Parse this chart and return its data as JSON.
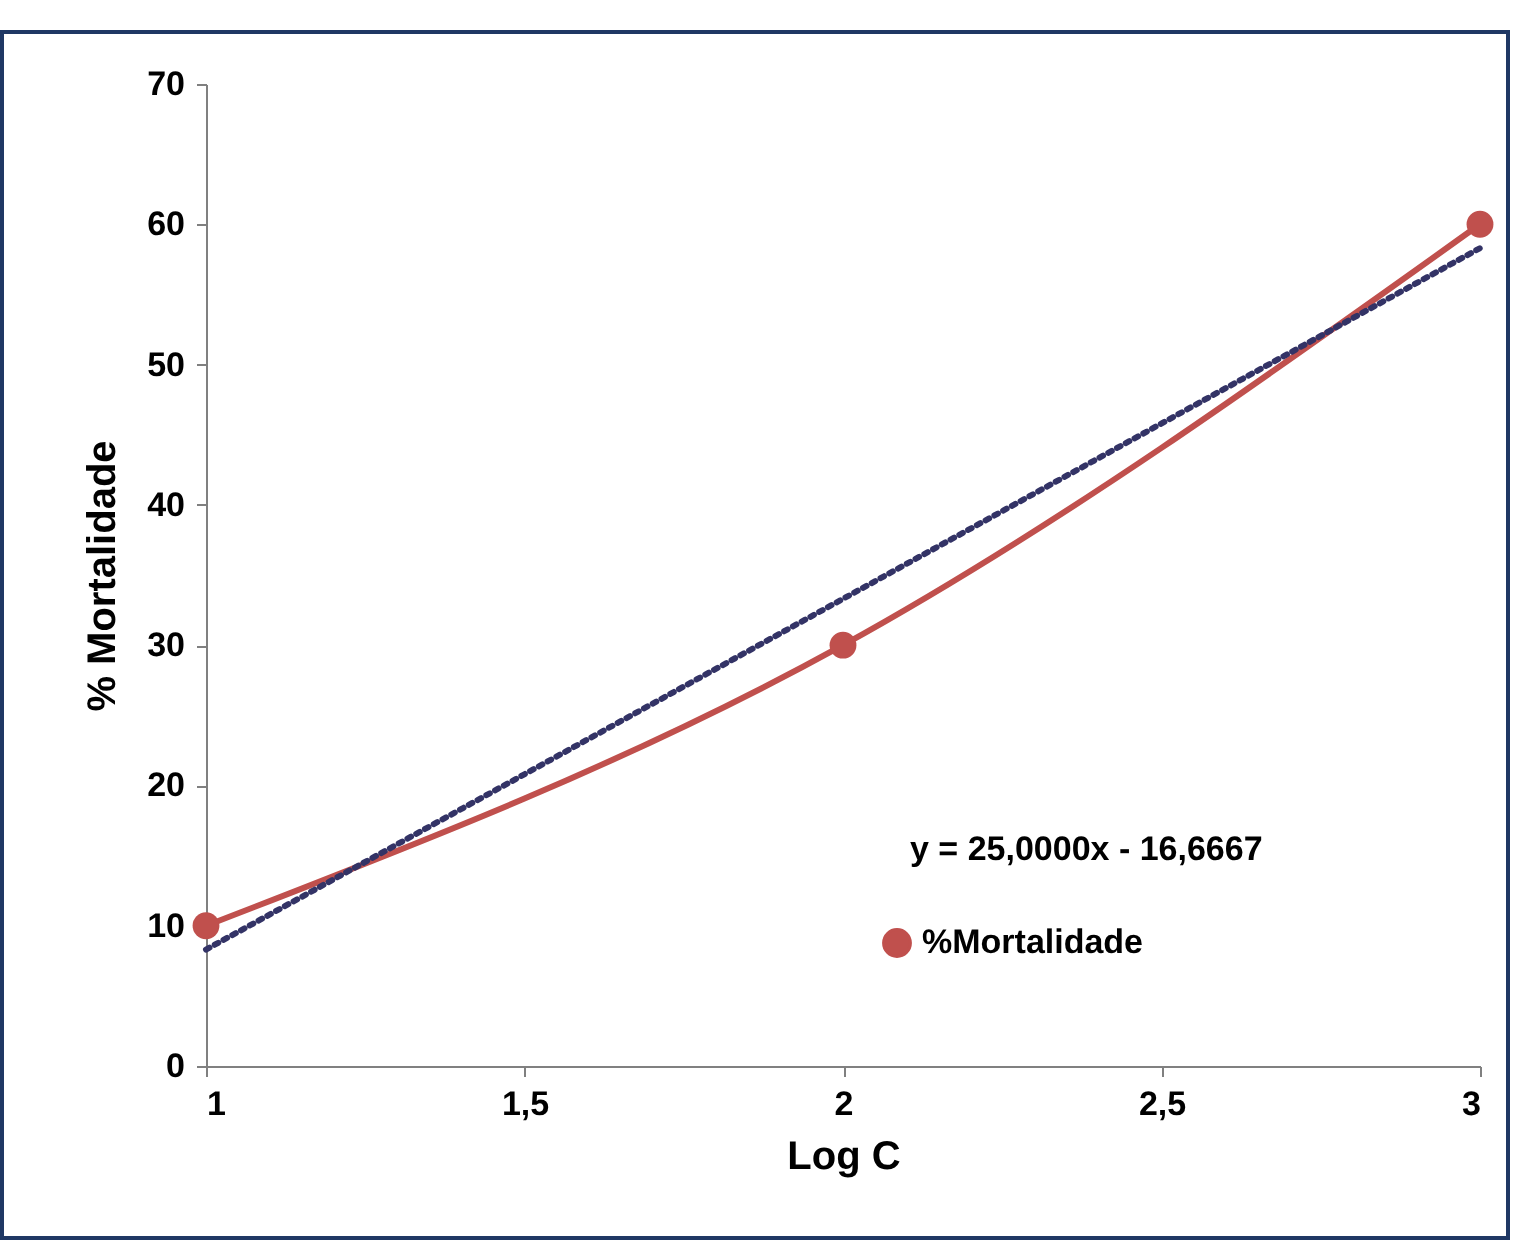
{
  "chart_data": {
    "type": "line",
    "xlabel": "Log C",
    "ylabel": "% Mortalidade",
    "x": [
      1,
      2,
      3
    ],
    "series": [
      {
        "name": "%Mortalidade",
        "color": "#c0504d",
        "values": [
          10,
          30,
          60
        ],
        "marker": "circle",
        "line_style": "solid"
      },
      {
        "type": "line",
        "color": "#333366",
        "x": [
          1,
          3
        ],
        "values": [
          8.3,
          58.3
        ],
        "marker": "none",
        "line_style": "dotted"
      }
    ],
    "xlim": [
      1,
      3
    ],
    "xticks": [
      1,
      {
        "value": 1.5,
        "label": "1,5"
      },
      2,
      {
        "value": 2.5,
        "label": "2,5"
      },
      3
    ],
    "ylim": [
      0,
      70
    ],
    "yticks": [
      0,
      10,
      20,
      30,
      40,
      50,
      60,
      70
    ],
    "grid": false,
    "legend": "bottom right",
    "annotations": [
      "y = 25,0000x - 16,6667"
    ]
  }
}
